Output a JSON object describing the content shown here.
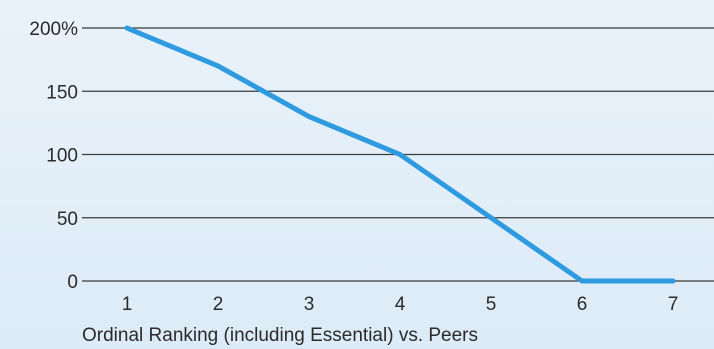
{
  "chart_data": {
    "type": "line",
    "title": "",
    "xlabel": "Ordinal Ranking (including Essential) vs. Peers",
    "ylabel": "",
    "x": [
      1,
      2,
      3,
      4,
      5,
      6,
      7
    ],
    "x_tick_labels": [
      "1",
      "2",
      "3",
      "4",
      "5",
      "6",
      "7"
    ],
    "y_ticks": [
      0,
      50,
      100,
      150,
      200
    ],
    "y_tick_labels": [
      "0",
      "50",
      "100",
      "150",
      "200%"
    ],
    "ylim": [
      0,
      200
    ],
    "grid": "horizontal",
    "series": [
      {
        "values": [
          200,
          170,
          130,
          100,
          50,
          0,
          0
        ],
        "color": "#2e9be0"
      }
    ]
  }
}
